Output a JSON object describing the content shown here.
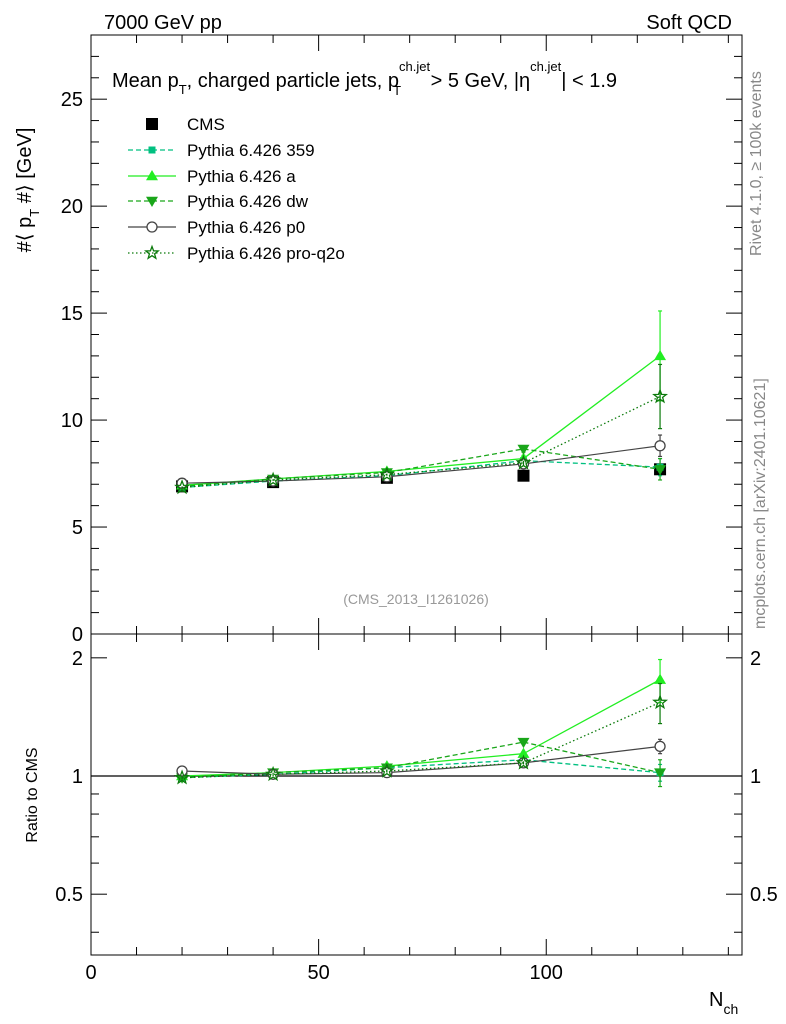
{
  "header": {
    "left": "7000 GeV pp",
    "right": "Soft QCD"
  },
  "side_labels": {
    "rivet": "Rivet 4.1.0, ≥ 100k events",
    "mcplots": "mcplots.cern.ch [arXiv:2401.10621]"
  },
  "colors": {
    "cms": "#000000",
    "pythia_359": "#00c080",
    "pythia_a": "#22ee22",
    "pythia_dw": "#1aa61a",
    "pythia_p0": "#444444",
    "pythia_proq2o": "#0b7a0b"
  },
  "chart_data": [
    {
      "type": "line",
      "panel": "main",
      "title": {
        "p1": "Mean p",
        "p1sub": "T",
        "p2": ", charged particle jets, p",
        "p2sup": "ch.jet",
        "p2sub": "T",
        "p3": " > 5 GeV,  |η",
        "p3sup": "ch.jet",
        "p4": "| < 1.9"
      },
      "ylabel": {
        "a": "#⟨ p",
        "sub": "T",
        "b": " #⟩ [GeV]"
      },
      "watermark": "(CMS_2013_I1261026)",
      "xlim": [
        0,
        143
      ],
      "ylim": [
        0,
        28
      ],
      "yticks": [
        0,
        5,
        10,
        15,
        20,
        25
      ],
      "ytick_labels": [
        "0",
        "5",
        "10",
        "15",
        "20",
        "25"
      ],
      "x": [
        20,
        40,
        65,
        95,
        125
      ],
      "series": [
        {
          "name": "CMS",
          "key": "cms",
          "marker": "square",
          "dash": "none",
          "values": [
            6.9,
            7.1,
            7.3,
            7.4,
            7.7
          ],
          "errors": [
            0,
            0,
            0,
            0,
            0
          ]
        },
        {
          "name": "Pythia 6.426 359",
          "key": "pythia_359",
          "marker": "smallsquare",
          "dash": "dashed",
          "values": [
            6.85,
            7.15,
            7.4,
            8.1,
            7.8
          ],
          "errors": [
            0.05,
            0.05,
            0.05,
            0.15,
            0.4
          ]
        },
        {
          "name": "Pythia 6.426 a",
          "key": "pythia_a",
          "marker": "triangle-up",
          "dash": "solid",
          "values": [
            6.95,
            7.25,
            7.6,
            8.2,
            13.0
          ],
          "errors": [
            0.05,
            0.05,
            0.05,
            0.15,
            2.1
          ]
        },
        {
          "name": "Pythia 6.426 dw",
          "key": "pythia_dw",
          "marker": "triangle-down",
          "dash": "dashed",
          "values": [
            6.9,
            7.25,
            7.55,
            8.65,
            7.7
          ],
          "errors": [
            0.05,
            0.05,
            0.05,
            0.15,
            0.5
          ]
        },
        {
          "name": "Pythia 6.426 p0",
          "key": "pythia_p0",
          "marker": "circle",
          "dash": "solid",
          "values": [
            7.05,
            7.15,
            7.35,
            7.95,
            8.8
          ],
          "errors": [
            0.05,
            0.05,
            0.05,
            0.1,
            0.5
          ]
        },
        {
          "name": "Pythia 6.426 pro-q2o",
          "key": "pythia_proq2o",
          "marker": "star",
          "dash": "dotted",
          "values": [
            6.85,
            7.2,
            7.45,
            8.0,
            11.1
          ],
          "errors": [
            0.05,
            0.05,
            0.05,
            0.1,
            1.5
          ]
        }
      ]
    },
    {
      "type": "line",
      "panel": "ratio",
      "ylabel": "Ratio to CMS",
      "xlabel": {
        "main": "N",
        "sub": "ch"
      },
      "xlim": [
        0,
        143
      ],
      "ylim": [
        0.35,
        2.3
      ],
      "xticks": [
        0,
        50,
        100
      ],
      "xtick_labels": [
        "0",
        "50",
        "100"
      ],
      "yticks": [
        0.5,
        1,
        2
      ],
      "ytick_labels": [
        "0.5",
        "1",
        "2"
      ],
      "x": [
        20,
        40,
        65,
        95,
        125
      ],
      "series": [
        {
          "name": "Pythia 6.426 359",
          "key": "pythia_359",
          "marker": "smallsquare",
          "dash": "dashed",
          "values": [
            0.99,
            1.01,
            1.05,
            1.1,
            1.02
          ],
          "errors": [
            0.01,
            0.01,
            0.01,
            0.02,
            0.05
          ]
        },
        {
          "name": "Pythia 6.426 a",
          "key": "pythia_a",
          "marker": "triangle-up",
          "dash": "solid",
          "values": [
            1.0,
            1.02,
            1.06,
            1.14,
            1.76
          ],
          "errors": [
            0.01,
            0.01,
            0.01,
            0.02,
            0.22
          ]
        },
        {
          "name": "Pythia 6.426 dw",
          "key": "pythia_dw",
          "marker": "triangle-down",
          "dash": "dashed",
          "values": [
            0.99,
            1.02,
            1.05,
            1.22,
            1.02
          ],
          "errors": [
            0.01,
            0.01,
            0.01,
            0.02,
            0.08
          ]
        },
        {
          "name": "Pythia 6.426 p0",
          "key": "pythia_p0",
          "marker": "circle",
          "dash": "solid",
          "values": [
            1.03,
            1.01,
            1.02,
            1.08,
            1.19
          ],
          "errors": [
            0.01,
            0.01,
            0.01,
            0.01,
            0.05
          ]
        },
        {
          "name": "Pythia 6.426 pro-q2o",
          "key": "pythia_proq2o",
          "marker": "star",
          "dash": "dotted",
          "values": [
            0.99,
            1.01,
            1.03,
            1.08,
            1.54
          ],
          "errors": [
            0.01,
            0.01,
            0.01,
            0.01,
            0.18
          ]
        }
      ]
    }
  ]
}
